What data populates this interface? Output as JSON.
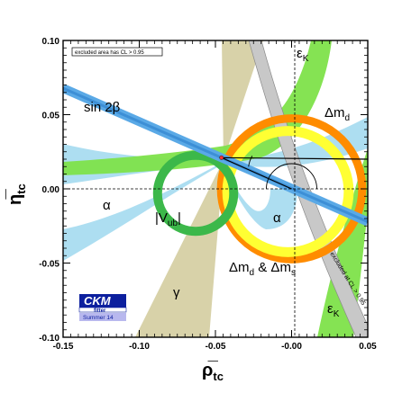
{
  "chart_data": {
    "type": "contour",
    "notice": "excluded area has CL > 0.95",
    "xlabel": "ρ̅",
    "xlabel_sub": "tc",
    "ylabel": "η̅",
    "ylabel_sub": "tc",
    "xlim": [
      -0.15,
      0.05
    ],
    "ylim": [
      -0.1,
      0.1
    ],
    "xticks": [
      "-0.15",
      "-0.10",
      "-0.05",
      "-0.00",
      "0.05"
    ],
    "xtick_values": [
      -0.15,
      -0.1,
      -0.05,
      0.0,
      0.05
    ],
    "yticks": [
      "-0.10",
      "-0.05",
      "0.00",
      "0.05",
      "0.10"
    ],
    "ytick_values": [
      -0.1,
      -0.05,
      0.0,
      0.05,
      0.1
    ],
    "region_labels": {
      "sin2beta": "sin 2β",
      "alpha_left": "α",
      "alpha_right": "α",
      "gamma": "γ",
      "vub": "|V",
      "vub_sub": "ub",
      "vub_end": "|",
      "dmd": "Δm",
      "dmd_sub": "d",
      "dmd_dms_a": "Δm",
      "dmd_dms_sub1": "d",
      "dmd_dms_mid": " & Δm",
      "dmd_dms_sub2": "s",
      "epsk_top": "ε",
      "epsk_top_sub": "K",
      "epsk_bottom": "ε",
      "epsk_bottom_sub": "K",
      "excluded_band": "excluded at CL > 0.95"
    },
    "apex": {
      "x": -0.046,
      "y": 0.021
    },
    "triangle_base": {
      "x": 0.05,
      "y": 0.02
    },
    "bands": {
      "dmd_ring_center": {
        "x": 0.0,
        "y": 0.0
      },
      "dmd_ring_radius": 0.044,
      "vub_ring_center": {
        "x": -0.063,
        "y": -0.003
      },
      "vub_ring_radius": 0.025,
      "sin2beta_slope": -0.45
    },
    "colors": {
      "sin2beta": "#5aa9e6",
      "alpha": "#a9dcf0",
      "gamma": "#d6d0a4",
      "vub": "#3cb84a",
      "epsk": "#7ee24a",
      "dmd_orange": "#ff8c00",
      "dmd_yellow": "#ffff33",
      "excluded_band": "#c8c8c8"
    }
  },
  "logo": {
    "main": "CKM",
    "sub": "fitter",
    "edition": "Summer 14"
  }
}
